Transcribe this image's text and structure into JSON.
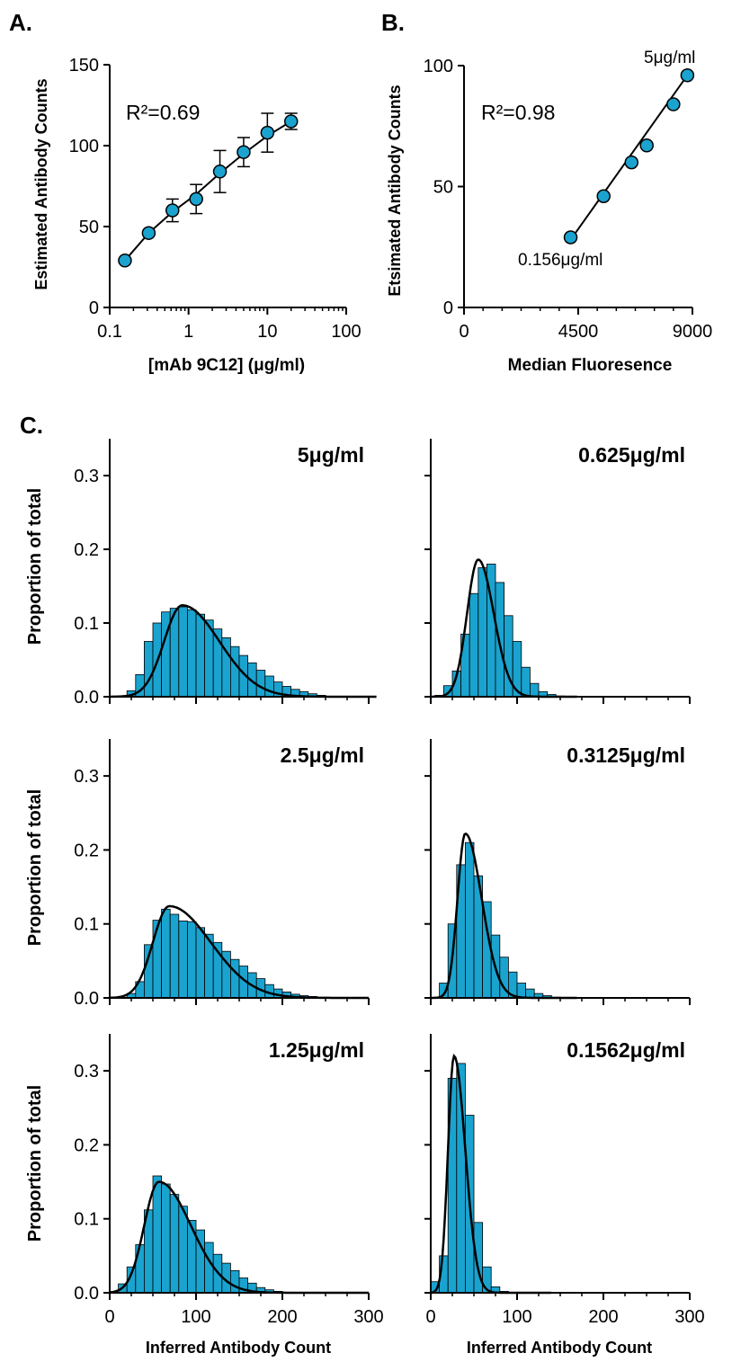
{
  "colors": {
    "fill": "#1aa3cf",
    "line": "#000000",
    "background": "#ffffff"
  },
  "panel_labels": {
    "a": "A.",
    "b": "B.",
    "c": "C."
  },
  "chart_data": [
    {
      "id": "A",
      "type": "scatter",
      "xscale": "log",
      "xlim": [
        0.1,
        100
      ],
      "ylim": [
        0,
        150
      ],
      "xticks": [
        0.1,
        1,
        10,
        100
      ],
      "xtick_labels": [
        "0.1",
        "1",
        "10",
        "100"
      ],
      "yticks": [
        0,
        50,
        100,
        150
      ],
      "ytick_labels": [
        "0",
        "50",
        "100",
        "150"
      ],
      "xlabel": "[mAb 9C12] (μg/ml)",
      "ylabel": "Estimated Antibody Counts",
      "annotation": "R²=0.69",
      "x": [
        0.156,
        0.3125,
        0.625,
        1.25,
        2.5,
        5,
        10,
        20
      ],
      "y": [
        29,
        46,
        60,
        67,
        84,
        96,
        108,
        115
      ],
      "error": [
        0,
        0,
        7,
        9,
        13,
        9,
        12,
        5
      ],
      "fit": [
        [
          0.156,
          29
        ],
        [
          0.3125,
          46
        ],
        [
          0.625,
          59
        ],
        [
          1.25,
          70
        ],
        [
          2.5,
          83
        ],
        [
          5,
          95
        ],
        [
          10,
          106
        ],
        [
          20,
          115
        ]
      ]
    },
    {
      "id": "B",
      "type": "scatter",
      "xlim": [
        0,
        9000
      ],
      "ylim": [
        0,
        100
      ],
      "xticks": [
        0,
        4500,
        9000
      ],
      "xtick_labels": [
        "0",
        "4500",
        "9000"
      ],
      "yticks": [
        0,
        50,
        100
      ],
      "ytick_labels": [
        "0",
        "50",
        "100"
      ],
      "xlabel": "Median Fluoresence",
      "ylabel": "Etsimated Antibody Counts",
      "annotation": "R²=0.98",
      "point_labels": {
        "high": "5μg/ml",
        "low": "0.156μg/ml"
      },
      "x": [
        4200,
        5500,
        6600,
        7200,
        8250,
        8800
      ],
      "y": [
        29,
        46,
        60,
        67,
        84,
        96
      ],
      "fit": [
        [
          4200,
          28
        ],
        [
          8800,
          96
        ]
      ]
    }
  ],
  "histograms": {
    "xlim": [
      0,
      300
    ],
    "ylim": [
      0,
      0.35
    ],
    "bin_width": 10,
    "xticks": [
      0,
      100,
      200,
      300
    ],
    "xtick_labels": [
      "0",
      "100",
      "200",
      "300"
    ],
    "yticks": [
      0,
      0.1,
      0.2,
      0.3
    ],
    "ytick_labels": [
      "0.0",
      "0.1",
      "0.2",
      "0.3"
    ],
    "ylabel": "Proportion of total",
    "xlabel": "Inferred Antibody Count",
    "panels": [
      {
        "title": "5μg/ml",
        "bin_start": 20,
        "values": [
          0.008,
          0.03,
          0.075,
          0.1,
          0.115,
          0.12,
          0.122,
          0.118,
          0.112,
          0.104,
          0.092,
          0.08,
          0.068,
          0.056,
          0.046,
          0.036,
          0.028,
          0.02,
          0.014,
          0.01,
          0.007,
          0.004,
          0.002
        ],
        "fit": {
          "mode": 84,
          "peak": 0.124,
          "sl": 21,
          "sr": 43,
          "end": 310
        }
      },
      {
        "title": "0.625μg/ml",
        "bin_start": 5,
        "values": [
          0.002,
          0.015,
          0.035,
          0.085,
          0.14,
          0.175,
          0.18,
          0.155,
          0.11,
          0.075,
          0.04,
          0.018,
          0.007,
          0.003,
          0.001,
          0.0005
        ],
        "fit": {
          "mode": 55,
          "peak": 0.186,
          "sl": 13,
          "sr": 18,
          "end": 170
        }
      },
      {
        "title": "2.5μg/ml",
        "bin_start": 20,
        "values": [
          0.006,
          0.022,
          0.072,
          0.105,
          0.12,
          0.113,
          0.104,
          0.103,
          0.095,
          0.086,
          0.075,
          0.063,
          0.052,
          0.043,
          0.034,
          0.026,
          0.018,
          0.012,
          0.008,
          0.005,
          0.003,
          0.002
        ],
        "fit": {
          "mode": 69,
          "peak": 0.124,
          "sl": 19,
          "sr": 48,
          "end": 300
        }
      },
      {
        "title": "0.3125μg/ml",
        "bin_start": 10,
        "values": [
          0.02,
          0.1,
          0.18,
          0.21,
          0.165,
          0.13,
          0.085,
          0.055,
          0.035,
          0.02,
          0.012,
          0.006,
          0.003,
          0.001
        ],
        "fit": {
          "mode": 40,
          "peak": 0.222,
          "sl": 9,
          "sr": 19,
          "end": 170
        }
      },
      {
        "title": "1.25μg/ml",
        "bin_start": 10,
        "values": [
          0.012,
          0.035,
          0.065,
          0.112,
          0.158,
          0.147,
          0.133,
          0.117,
          0.098,
          0.085,
          0.068,
          0.052,
          0.04,
          0.03,
          0.02,
          0.013,
          0.007,
          0.004,
          0.002
        ],
        "fit": {
          "mode": 57,
          "peak": 0.15,
          "sl": 17,
          "sr": 37,
          "end": 300
        }
      },
      {
        "title": "0.1562μg/ml",
        "bin_start": 0,
        "values": [
          0.015,
          0.05,
          0.29,
          0.31,
          0.24,
          0.095,
          0.035,
          0.008,
          0.002
        ],
        "fit": {
          "mode": 27,
          "peak": 0.32,
          "sl": 7,
          "sr": 13,
          "end": 140
        }
      }
    ]
  }
}
